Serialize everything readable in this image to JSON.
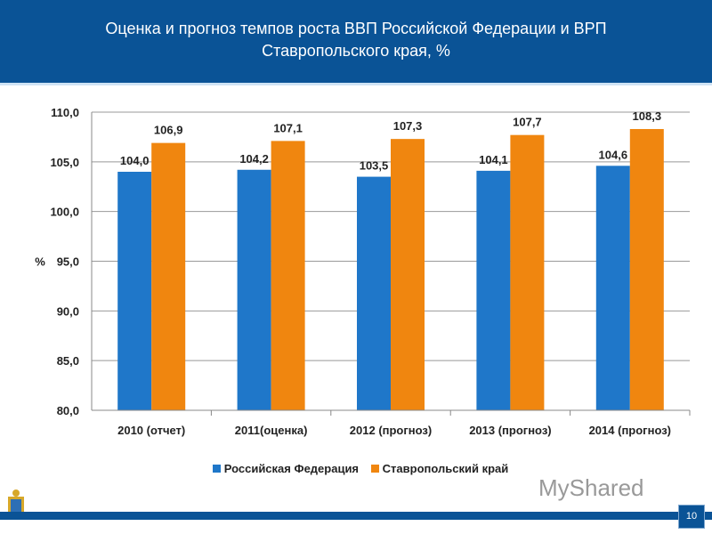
{
  "header": {
    "title": "Оценка и прогноз темпов роста ВВП Российской Федерации и ВРП Ставропольского края, %"
  },
  "chart_data": {
    "type": "bar",
    "title": "Оценка и прогноз темпов роста ВВП Российской Федерации и ВРП Ставропольского края, %",
    "ylabel": "%",
    "ylim": [
      80,
      110
    ],
    "yticks": [
      "80,0",
      "85,0",
      "90,0",
      "95,0",
      "100,0",
      "105,0",
      "110,0"
    ],
    "grid": true,
    "legend": "bottom",
    "categories": [
      "2010 (отчет)",
      "2011(оценка)",
      "2012 (прогноз)",
      "2013 (прогноз)",
      "2014 (прогноз)"
    ],
    "series": [
      {
        "name": "Российская Федерация",
        "color": "#1f77c9",
        "values": [
          104.0,
          104.2,
          103.5,
          104.1,
          104.6
        ],
        "labels": [
          "104,0",
          "104,2",
          "103,5",
          "104,1",
          "104,6"
        ]
      },
      {
        "name": "Ставропольский край",
        "color": "#f0860f",
        "values": [
          106.9,
          107.1,
          107.3,
          107.7,
          108.3
        ],
        "labels": [
          "106,9",
          "107,1",
          "107,3",
          "107,7",
          "108,3"
        ]
      }
    ]
  },
  "footer": {
    "page_number": "10",
    "watermark": "MyShared"
  }
}
